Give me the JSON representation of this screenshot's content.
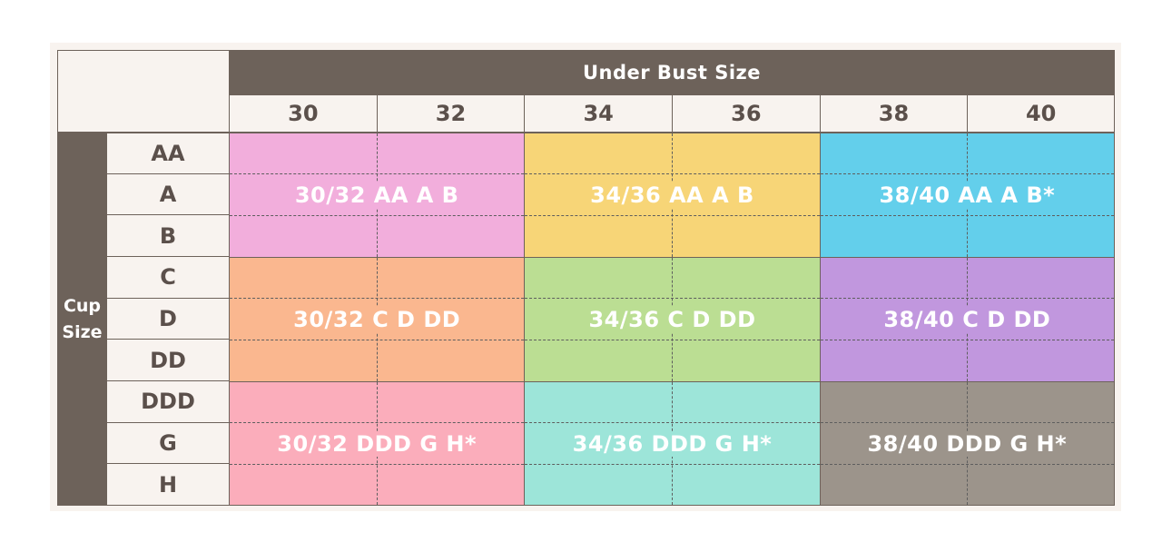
{
  "header": {
    "title": "Under Bust Size",
    "columns": [
      "30",
      "32",
      "34",
      "36",
      "38",
      "40"
    ]
  },
  "side": {
    "label_line1": "Cup",
    "label_line2": "Size",
    "rows": [
      "AA",
      "A",
      "B",
      "C",
      "D",
      "DD",
      "DDD",
      "G",
      "H"
    ]
  },
  "blocks": [
    {
      "label": "30/32 AA A B",
      "color": "#f2aedc"
    },
    {
      "label": "34/36 AA A B",
      "color": "#f7d577"
    },
    {
      "label": "38/40 AA A B*",
      "color": "#63cfeb"
    },
    {
      "label": "30/32 C D DD",
      "color": "#fab78f"
    },
    {
      "label": "34/36 C D DD",
      "color": "#bbde93"
    },
    {
      "label": "38/40 C D DD",
      "color": "#c197de"
    },
    {
      "label": "30/32 DDD G H*",
      "color": "#fbadbb"
    },
    {
      "label": "34/36 DDD G H*",
      "color": "#9de5d9"
    },
    {
      "label": "38/40 DDD G H*",
      "color": "#9c948b"
    }
  ],
  "colors": {
    "header_bg": "#6d625a",
    "light_bg": "#f8f3ef",
    "text_dark": "#5b504b"
  }
}
